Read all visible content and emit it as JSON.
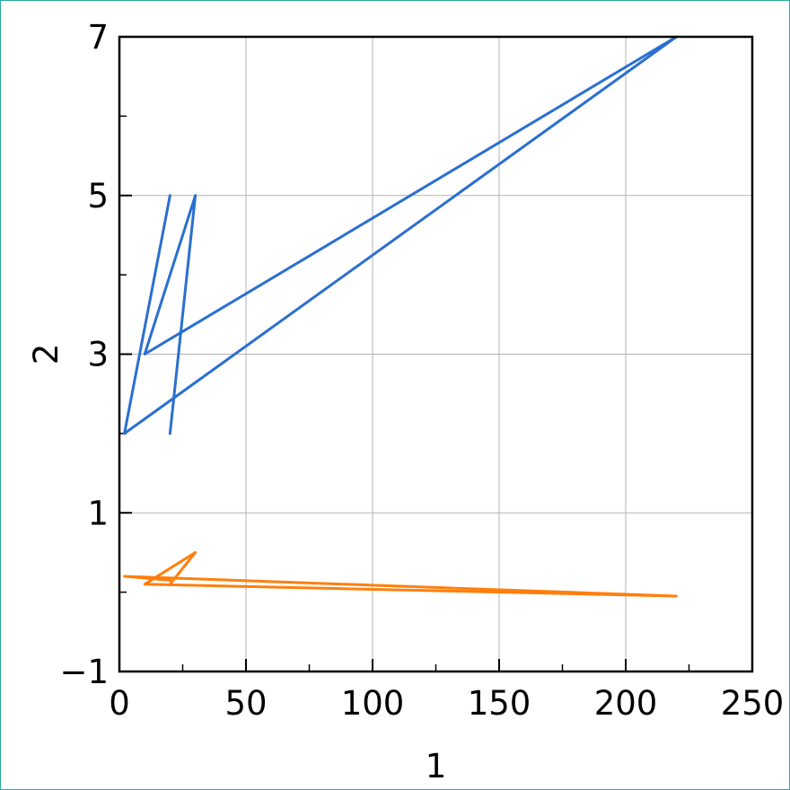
{
  "chart_data": {
    "type": "line",
    "title": "",
    "xlabel": "1",
    "ylabel": "2",
    "xlim": [
      0,
      250
    ],
    "ylim": [
      -1,
      7
    ],
    "grid": true,
    "x_ticks": [
      0,
      50,
      100,
      150,
      200,
      250
    ],
    "x_tick_labels": [
      "0",
      "50",
      "100",
      "150",
      "200",
      "250"
    ],
    "y_ticks": [
      -1,
      1,
      3,
      5,
      7
    ],
    "y_tick_labels": [
      "−1",
      "1",
      "3",
      "5",
      "7"
    ],
    "x_minor_ticks": [
      25,
      75,
      125,
      175,
      225
    ],
    "y_minor_ticks": [
      0,
      2,
      4,
      6
    ],
    "series": [
      {
        "color": "#2a6fd1",
        "x": [
          20,
          30,
          10,
          220,
          2,
          20
        ],
        "y": [
          2,
          5,
          3,
          7,
          2,
          5
        ]
      },
      {
        "color": "#ff7f0e",
        "x": [
          20,
          30,
          10,
          220,
          2,
          20
        ],
        "y": [
          0.1,
          0.5,
          0.1,
          -0.05,
          0.2,
          0.15
        ]
      }
    ]
  }
}
